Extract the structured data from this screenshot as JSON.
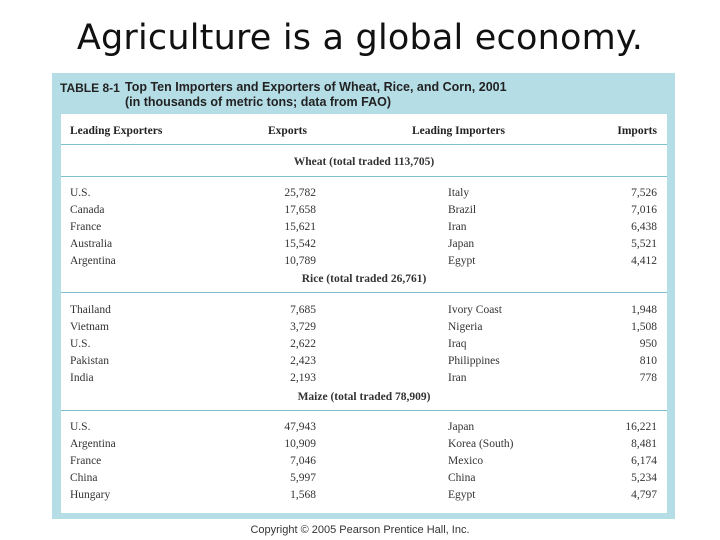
{
  "slide": {
    "title": "Agriculture is a global economy."
  },
  "table": {
    "label": "TABLE 8-1",
    "caption_line1": "Top Ten Importers and Exporters of Wheat, Rice, and Corn, 2001",
    "caption_line2": "(in thousands of metric tons; data from FAO)",
    "headers": [
      "Leading Exporters",
      "Exports",
      "Leading Importers",
      "Imports"
    ],
    "sections": [
      {
        "title": "Wheat (total traded 113,705)",
        "rows": [
          [
            "U.S.",
            "25,782",
            "Italy",
            "7,526"
          ],
          [
            "Canada",
            "17,658",
            "Brazil",
            "7,016"
          ],
          [
            "France",
            "15,621",
            "Iran",
            "6,438"
          ],
          [
            "Australia",
            "15,542",
            "Japan",
            "5,521"
          ],
          [
            "Argentina",
            "10,789",
            "Egypt",
            "4,412"
          ]
        ]
      },
      {
        "title": "Rice (total traded 26,761)",
        "rows": [
          [
            "Thailand",
            "7,685",
            "Ivory Coast",
            "1,948"
          ],
          [
            "Vietnam",
            "3,729",
            "Nigeria",
            "1,508"
          ],
          [
            "U.S.",
            "2,622",
            "Iraq",
            "950"
          ],
          [
            "Pakistan",
            "2,423",
            "Philippines",
            "810"
          ],
          [
            "India",
            "2,193",
            "Iran",
            "778"
          ]
        ]
      },
      {
        "title": "Maize (total traded 78,909)",
        "rows": [
          [
            "U.S.",
            "47,943",
            "Japan",
            "16,221"
          ],
          [
            "Argentina",
            "10,909",
            "Korea (South)",
            "8,481"
          ],
          [
            "France",
            "7,046",
            "Mexico",
            "6,174"
          ],
          [
            "China",
            "5,997",
            "China",
            "5,234"
          ],
          [
            "Hungary",
            "1,568",
            "Egypt",
            "4,797"
          ]
        ]
      }
    ]
  },
  "footer": {
    "copyright": "Copyright © 2005 Pearson Prentice Hall, Inc."
  },
  "colors": {
    "panel_background": "#b5dde6",
    "rule_lines": "#7dc1d1"
  }
}
